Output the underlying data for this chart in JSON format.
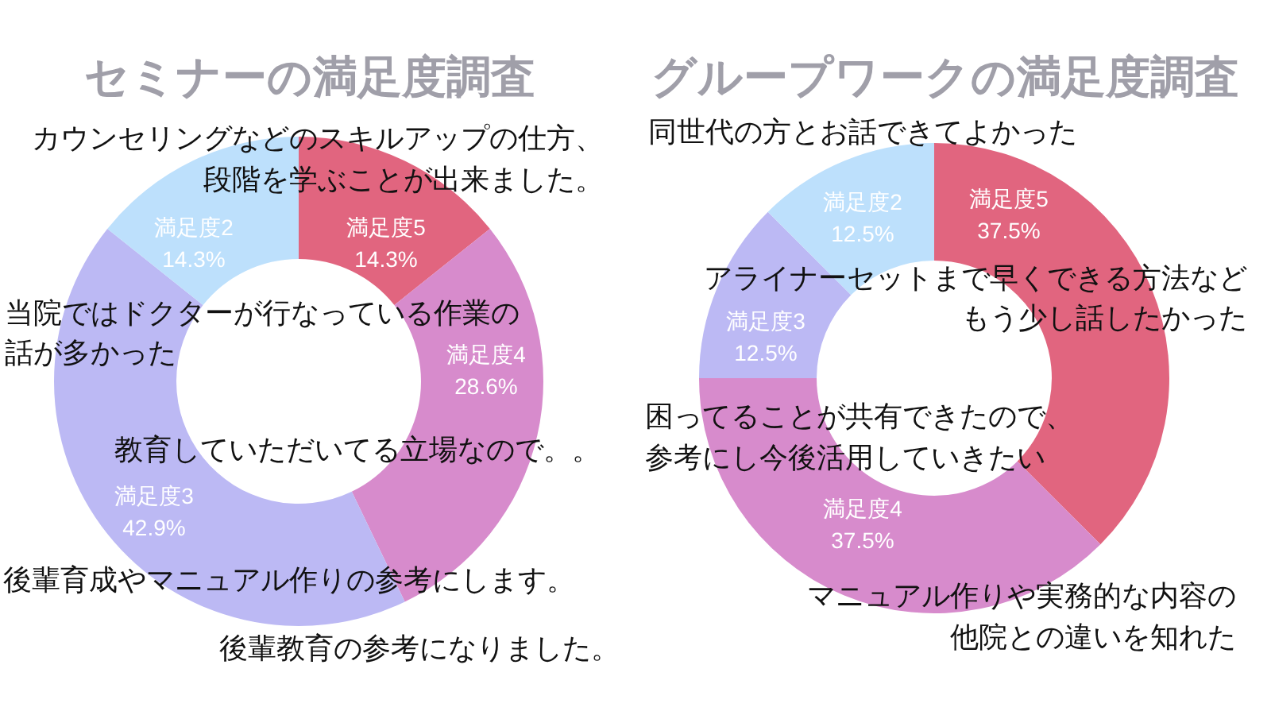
{
  "chart_data": [
    {
      "type": "donut",
      "title": "セミナーの満足度調査",
      "categories": [
        "満足度5",
        "満足度4",
        "満足度3",
        "満足度2"
      ],
      "values": [
        14.3,
        28.6,
        42.9,
        14.3
      ],
      "value_labels": [
        "14.3%",
        "28.6%",
        "42.9%",
        "14.3%"
      ],
      "colors": [
        "#e1657f",
        "#d78bcc",
        "#bcb9f4",
        "#bde0fc"
      ],
      "annotations": [
        "カウンセリングなどのスキルアップの仕方、",
        "段階を学ぶことが出来ました。",
        "当院ではドクターが行なっている作業の",
        "話が多かった",
        "教育していただいてる立場なので。。",
        "後輩育成やマニュアル作りの参考にします。",
        "後輩教育の参考になりました。"
      ]
    },
    {
      "type": "donut",
      "title": "グループワークの満足度調査",
      "categories": [
        "満足度5",
        "満足度4",
        "満足度3",
        "満足度2"
      ],
      "values": [
        37.5,
        37.5,
        12.5,
        12.5
      ],
      "value_labels": [
        "37.5%",
        "37.5%",
        "12.5%",
        "12.5%"
      ],
      "colors": [
        "#e1657f",
        "#d78bcc",
        "#bcb9f4",
        "#bde0fc"
      ],
      "annotations": [
        "同世代の方とお話できてよかった",
        "アライナーセットまで早くできる方法など",
        "もう少し話したかった",
        "困ってることが共有できたので、",
        "参考にし今後活用していきたい",
        "マニュアル作りや実務的な内容の",
        "他院との違いを知れた"
      ]
    }
  ]
}
